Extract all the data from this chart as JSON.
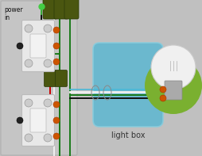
{
  "bg_color": "#c0c0c0",
  "title": "power\nin",
  "light_box_label": "light box",
  "wire_black": "#111111",
  "wire_white": "#f0f0f0",
  "wire_red": "#cc0000",
  "wire_green": "#1a7a1a",
  "wire_green2": "#44cc44",
  "wire_blue": "#4ab8d8",
  "connector_orange": "#cc5500",
  "switch_body": "#e8e8e8",
  "switch_border": "#bbbbbb",
  "screw_face": "#cccccc",
  "dark_olive": "#4a5610",
  "lightbox_fill": "#62b8d0",
  "lightbox_edge": "#88ccdd",
  "bulb_fill": "#f0f0f0",
  "bulb_edge": "#cccccc",
  "socket_fill": "#7ab030",
  "wall_fill": "#c8c8c8",
  "wall_edge": "#aaaaaa",
  "lw_wire": 1.4,
  "lw_wire_thick": 2.0
}
